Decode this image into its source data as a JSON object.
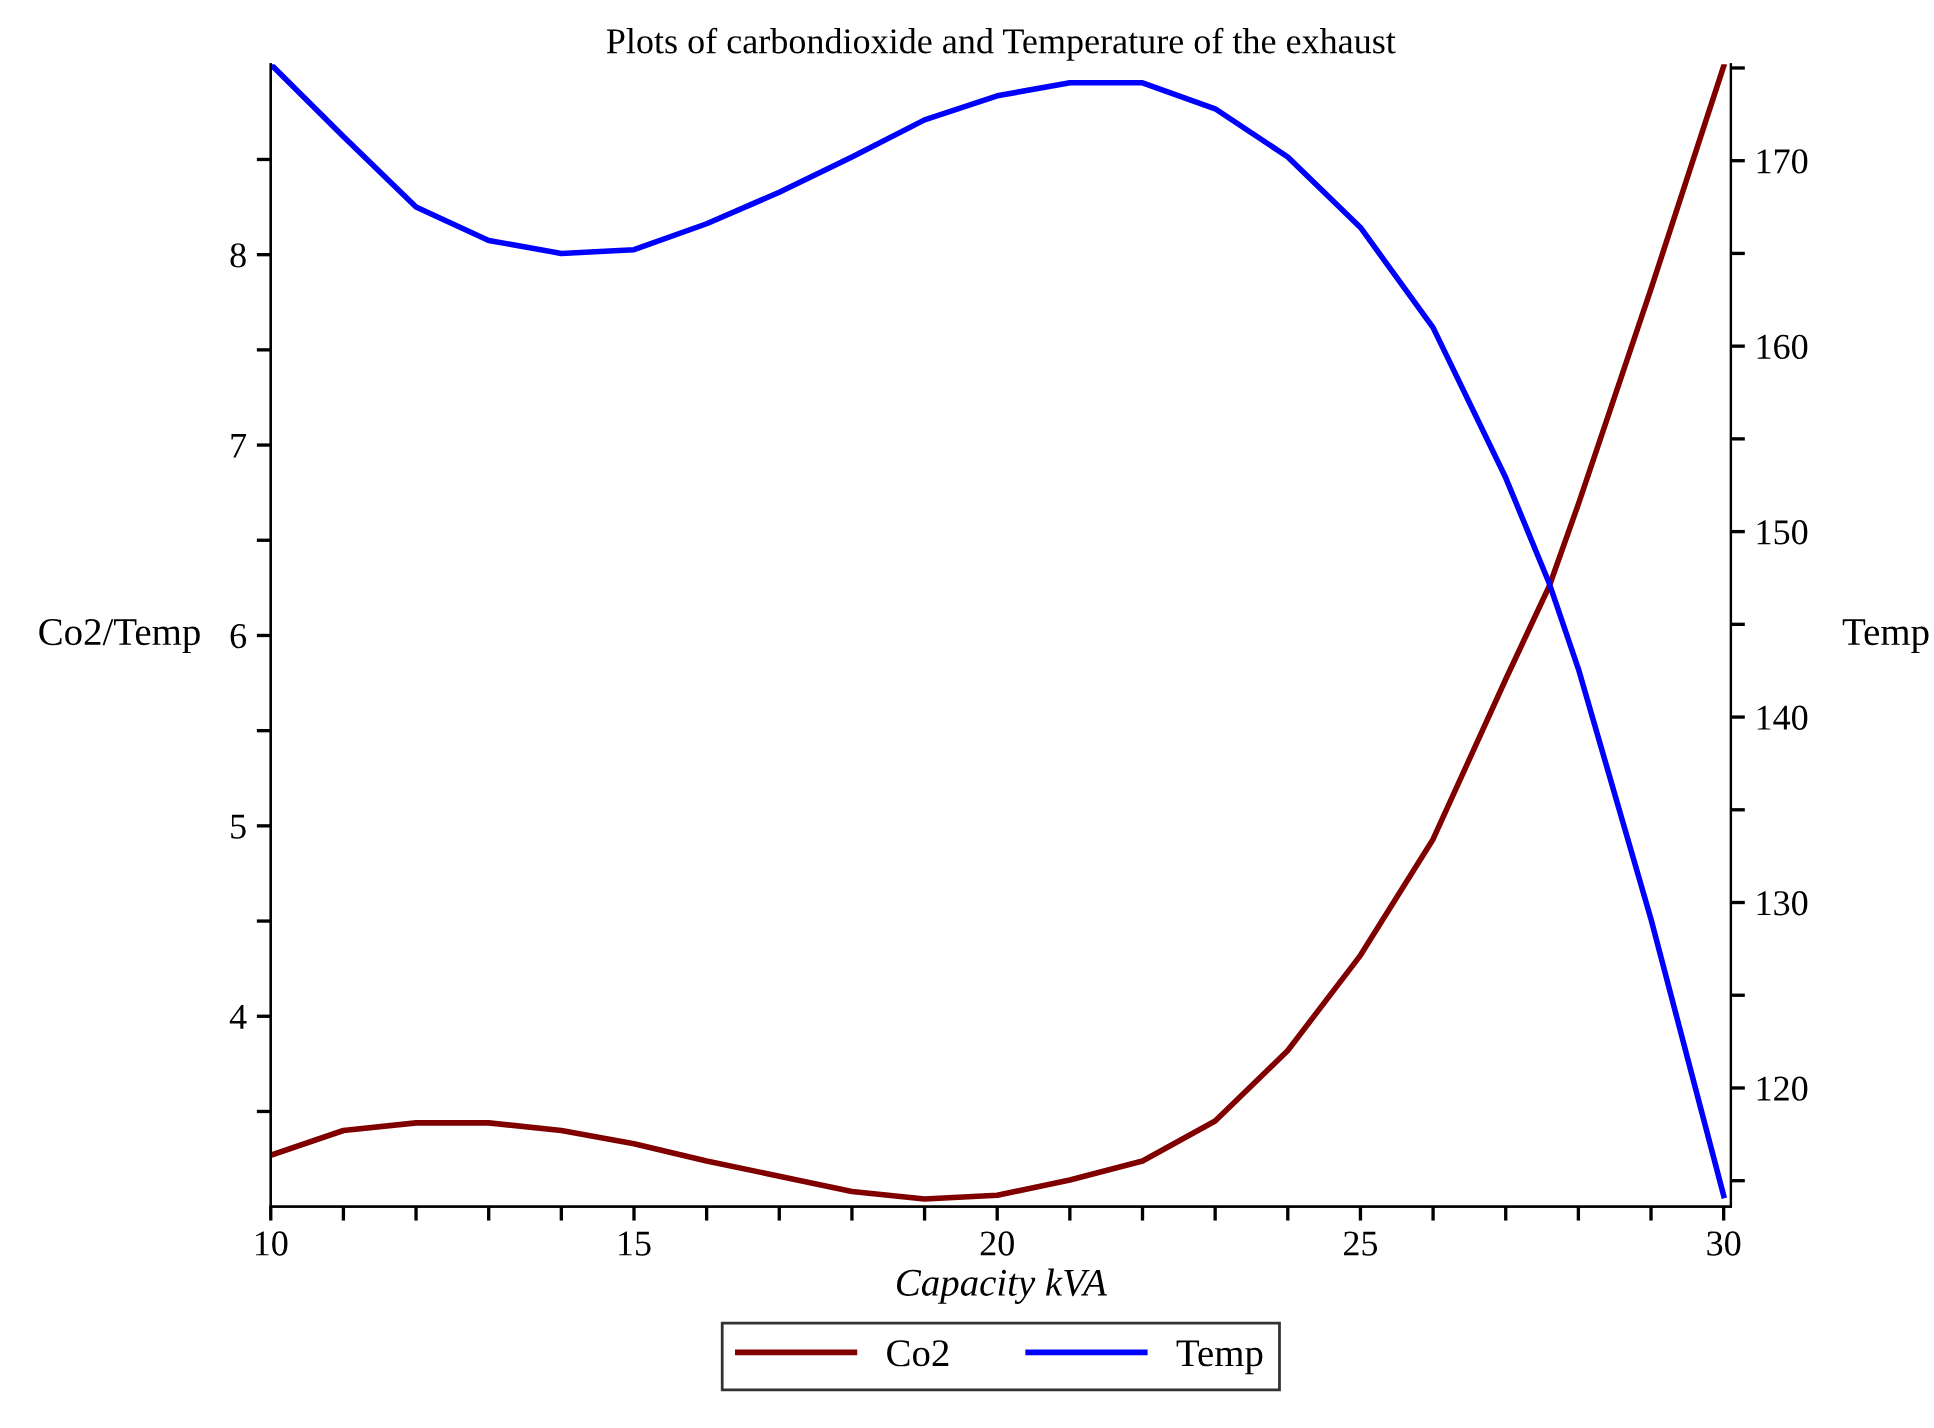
{
  "chart_data": {
    "type": "line",
    "title": "Plots of carbondioxide and Temperature of the exhaust",
    "xlabel": "Capacity kVA",
    "ylabel": "Co2/Temp",
    "y2label": "Temp",
    "x": [
      10,
      11,
      12,
      13,
      14,
      15,
      16,
      17,
      18,
      19,
      20,
      21,
      22,
      23,
      24,
      25,
      26,
      27,
      27.6,
      28,
      29,
      30
    ],
    "series": [
      {
        "name": "Co2",
        "color": "#800000",
        "values": [
          3.27,
          3.4,
          3.44,
          3.44,
          3.4,
          3.33,
          3.24,
          3.16,
          3.08,
          3.04,
          3.06,
          3.14,
          3.24,
          3.45,
          3.82,
          4.32,
          4.93,
          5.77,
          6.26,
          6.69,
          7.82,
          8.99
        ]
      },
      {
        "name": "Temp",
        "color": "#0000ff",
        "axis": "y2",
        "values": [
          175.2,
          171.3,
          167.5,
          165.7,
          165.0,
          165.2,
          166.6,
          168.3,
          170.2,
          172.2,
          173.5,
          174.2,
          174.2,
          172.8,
          170.2,
          166.4,
          161.0,
          152.9,
          147.2,
          142.6,
          129.1,
          114.2
        ]
      }
    ],
    "xlim": [
      10,
      30.1
    ],
    "xticks": [
      10,
      {
        "value": 11,
        "label": null
      },
      {
        "value": 12,
        "label": null
      },
      {
        "value": 13,
        "label": null
      },
      {
        "value": 14,
        "label": null
      },
      15,
      {
        "value": 16,
        "label": null
      },
      {
        "value": 17,
        "label": null
      },
      {
        "value": 18,
        "label": null
      },
      {
        "value": 19,
        "label": null
      },
      20,
      {
        "value": 21,
        "label": null
      },
      {
        "value": 22,
        "label": null
      },
      {
        "value": 23,
        "label": null
      },
      {
        "value": 24,
        "label": null
      },
      25,
      {
        "value": 26,
        "label": null
      },
      {
        "value": 27,
        "label": null
      },
      {
        "value": 28,
        "label": null
      },
      {
        "value": 29,
        "label": null
      },
      30
    ],
    "ylim": [
      3.0,
      9.0
    ],
    "yticks": [
      {
        "value": 3.5,
        "label": null
      },
      4,
      {
        "value": 4.5,
        "label": null
      },
      5,
      {
        "value": 5.5,
        "label": null
      },
      6,
      {
        "value": 6.5,
        "label": null
      },
      7,
      {
        "value": 7.5,
        "label": null
      },
      8,
      {
        "value": 8.5,
        "label": null
      }
    ],
    "y2lim": [
      113.6,
      175.2
    ],
    "y2ticks": [
      {
        "value": 115,
        "label": null
      },
      120,
      {
        "value": 125,
        "label": null
      },
      130,
      {
        "value": 135,
        "label": null
      },
      140,
      {
        "value": 145,
        "label": null
      },
      150,
      {
        "value": 155,
        "label": null
      },
      160,
      {
        "value": 165,
        "label": null
      },
      170,
      {
        "value": 175,
        "label": null
      }
    ],
    "grid": false,
    "legend": "bottom",
    "line_style": "solid",
    "marker": "none"
  }
}
